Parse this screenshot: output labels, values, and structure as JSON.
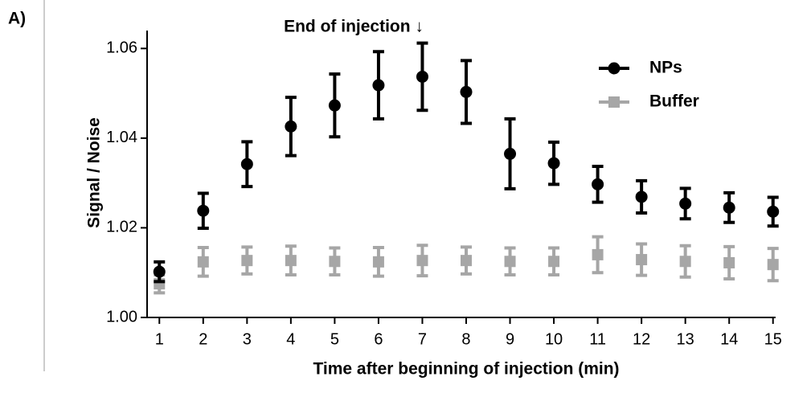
{
  "panel_label": "A)",
  "chart_data": {
    "type": "scatter",
    "annotation": "End of injection ↓",
    "x_label": "Time after beginning of injection (min)",
    "y_label": "Signal / Noise",
    "x": [
      1,
      2,
      3,
      4,
      5,
      6,
      7,
      8,
      9,
      10,
      11,
      12,
      13,
      14,
      15
    ],
    "series": [
      {
        "name": "NPs",
        "color": "#000000",
        "marker": "circle",
        "values": [
          1.0102,
          1.0238,
          1.0342,
          1.0426,
          1.0473,
          1.0518,
          1.0537,
          1.0503,
          1.0365,
          1.0344,
          1.0297,
          1.0269,
          1.0254,
          1.0245,
          1.0236
        ],
        "errors": [
          0.0022,
          0.0039,
          0.005,
          0.0065,
          0.007,
          0.0075,
          0.0075,
          0.007,
          0.0078,
          0.0047,
          0.004,
          0.0036,
          0.0034,
          0.0033,
          0.0032
        ]
      },
      {
        "name": "Buffer",
        "color": "#a6a6a6",
        "marker": "square",
        "values": [
          1.0075,
          1.0124,
          1.0127,
          1.0127,
          1.0125,
          1.0124,
          1.0127,
          1.0127,
          1.0125,
          1.0125,
          1.014,
          1.0129,
          1.0125,
          1.0122,
          1.0118
        ],
        "errors": [
          0.002,
          0.0032,
          0.003,
          0.0032,
          0.003,
          0.0032,
          0.0034,
          0.003,
          0.003,
          0.003,
          0.004,
          0.0035,
          0.0035,
          0.0036,
          0.0036
        ]
      }
    ],
    "xlim": [
      0.72,
      15.06
    ],
    "ylim": [
      1.0,
      1.064
    ],
    "xticks": [
      1,
      2,
      3,
      4,
      5,
      6,
      7,
      8,
      9,
      10,
      11,
      12,
      13,
      14,
      15
    ],
    "yticks": [
      {
        "value": 1.0,
        "label": "1.00"
      },
      1.02,
      1.04,
      1.06
    ],
    "legend": "upper right",
    "grid": false
  }
}
